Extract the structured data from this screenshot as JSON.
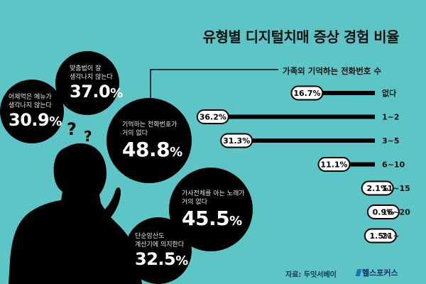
{
  "title": "유형별 디지털치매 증상 경험 비율",
  "colors": {
    "background": "#5ec5c6",
    "bubble": "#000000",
    "text_light": "#ffffff"
  },
  "bubbles": [
    {
      "label": "맞춤법이 잘\n생각나지 않는다",
      "value": "37.0",
      "unit": "%"
    },
    {
      "label": "어제먹은 메뉴가\n생각나지 않는다",
      "value": "30.9",
      "unit": "%"
    },
    {
      "label": "기억하는 전화번호가\n거의 없다",
      "value": "48.8",
      "unit": "%"
    },
    {
      "label": "가사전체를 아는 노래가\n거의 없다",
      "value": "45.5",
      "unit": "%"
    },
    {
      "label": "단순암산도\n계산기에 의지한다",
      "value": "32.5",
      "unit": "%"
    }
  ],
  "question_marks": [
    "?",
    "?"
  ],
  "chart_data": {
    "type": "bar",
    "title": "가족외 기억하는 전화번호 수",
    "categories": [
      "없다",
      "1~2",
      "3~5",
      "6~10",
      "11~15",
      "16~20",
      "21~"
    ],
    "values": [
      16.7,
      36.2,
      31.3,
      11.1,
      2.1,
      0.9,
      1.5
    ],
    "value_labels": [
      "16.7%",
      "36.2%",
      "31.3%",
      "11.1%",
      "2.1%",
      "0.9%",
      "1.5%"
    ],
    "unit": "%"
  },
  "source": "자료: 두잇서베이",
  "brand": "헬스포커스"
}
